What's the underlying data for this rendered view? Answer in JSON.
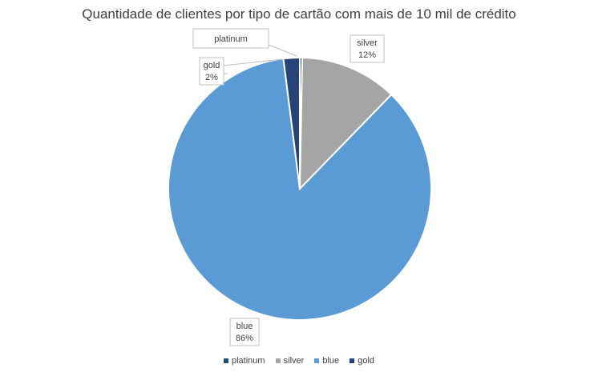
{
  "chart_data": {
    "type": "pie",
    "title": "Quantidade de clientes por tipo de cartão com mais de 10 mil de crédito",
    "legend_position": "bottom",
    "start_angle_deg": 0,
    "slices": [
      {
        "name": "platinum",
        "value": 0.3,
        "label_name": "platinum",
        "label_value": "",
        "color": "#1F4E79"
      },
      {
        "name": "silver",
        "value": 12,
        "label_name": "silver",
        "label_value": "12%",
        "color": "#A5A5A5"
      },
      {
        "name": "blue",
        "value": 86,
        "label_name": "blue",
        "label_value": "86%",
        "color": "#5B9BD5"
      },
      {
        "name": "gold",
        "value": 2,
        "label_name": "gold",
        "label_value": "2%",
        "color": "#264478"
      }
    ],
    "legend": [
      {
        "name": "platinum",
        "color": "#1F4E79"
      },
      {
        "name": "silver",
        "color": "#A5A5A5"
      },
      {
        "name": "blue",
        "color": "#5B9BD5"
      },
      {
        "name": "gold",
        "color": "#264478"
      }
    ]
  }
}
